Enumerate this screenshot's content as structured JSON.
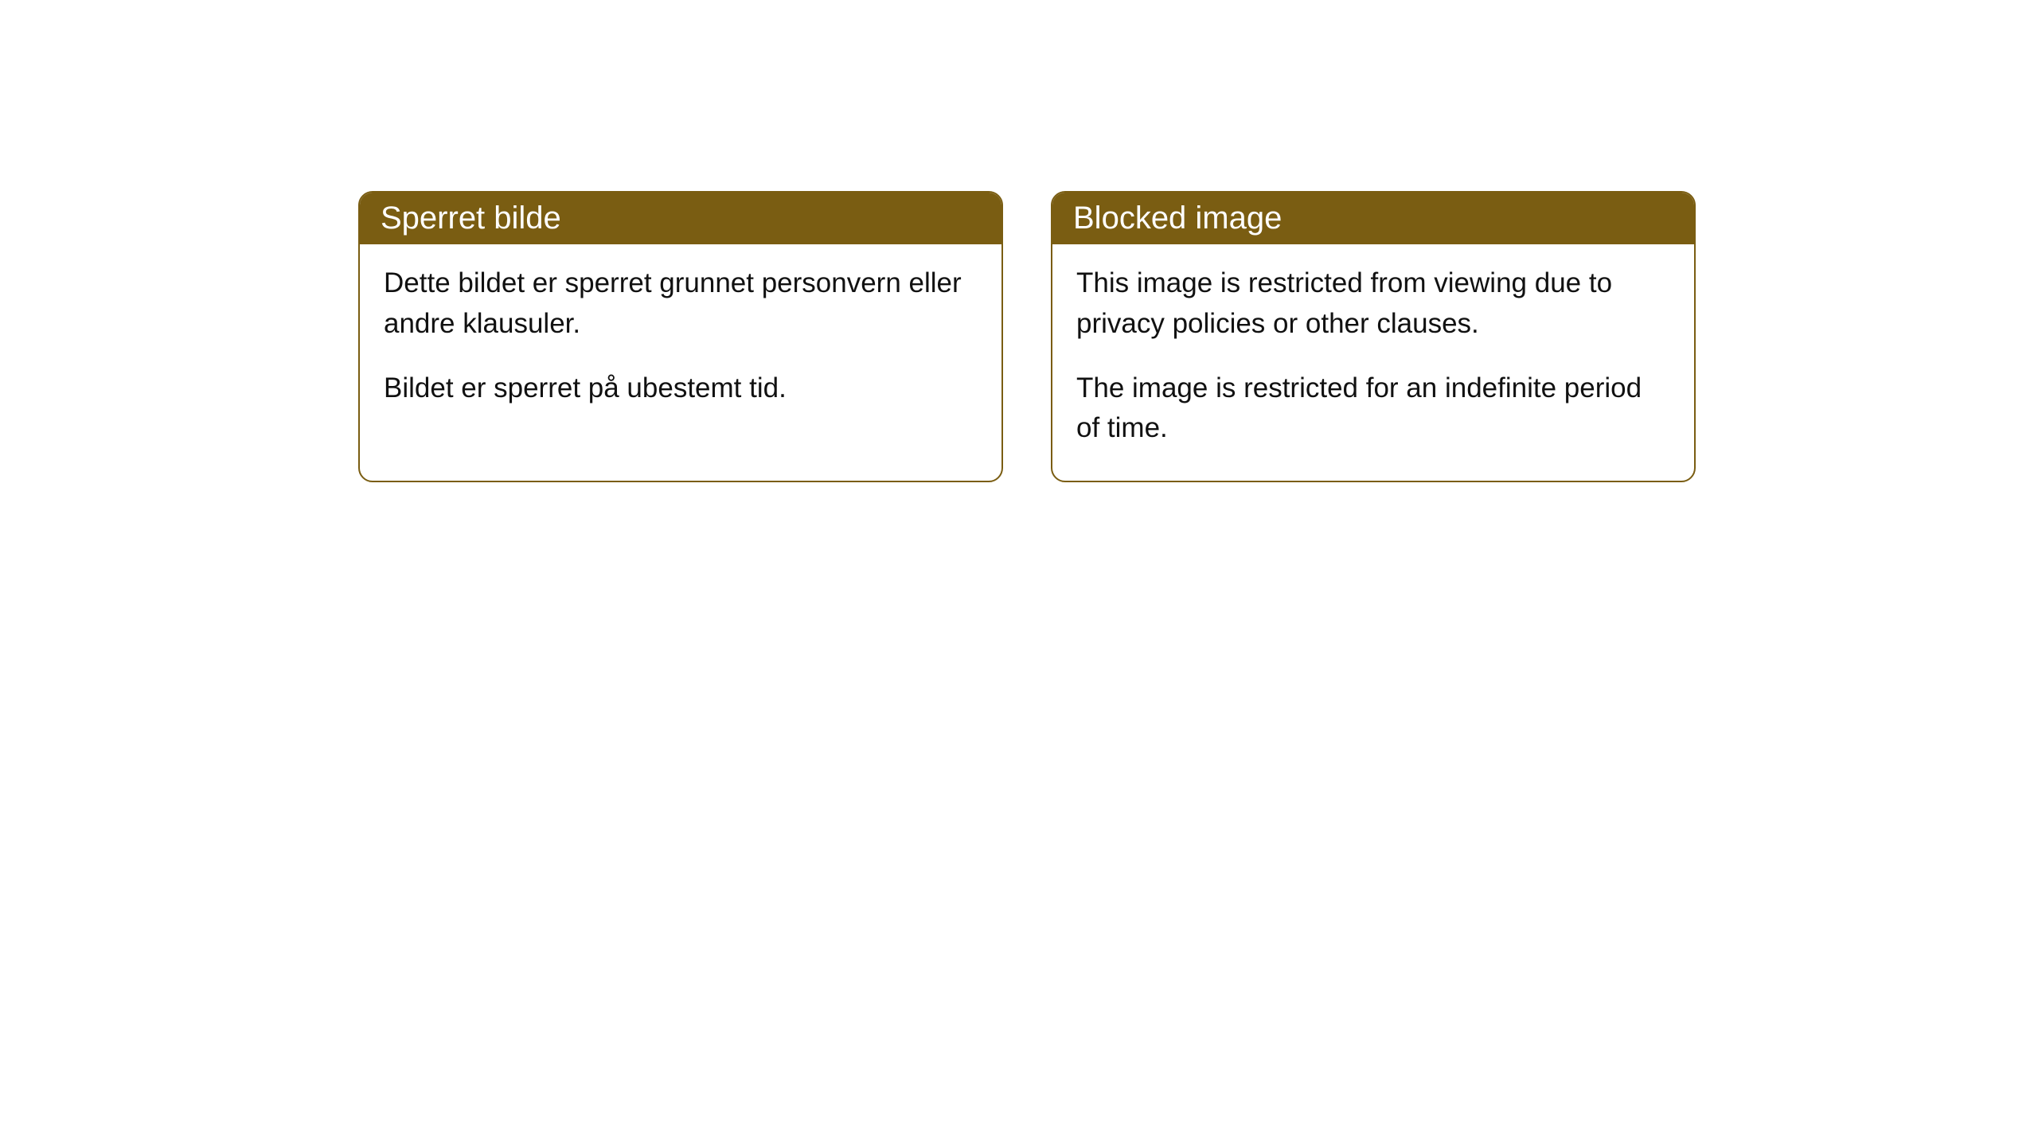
{
  "cards": [
    {
      "title": "Sperret bilde",
      "paragraph1": "Dette bildet er sperret grunnet personvern eller andre klausuler.",
      "paragraph2": "Bildet er sperret på ubestemt tid."
    },
    {
      "title": "Blocked image",
      "paragraph1": "This image is restricted from viewing due to privacy policies or other clauses.",
      "paragraph2": "The image is restricted for an indefinite period of time."
    }
  ],
  "styling": {
    "header_bg_color": "#7a5d12",
    "header_text_color": "#ffffff",
    "border_color": "#7a5d12",
    "body_bg_color": "#ffffff",
    "body_text_color": "#111111",
    "border_radius": 18,
    "header_fontsize": 40,
    "body_fontsize": 35
  }
}
